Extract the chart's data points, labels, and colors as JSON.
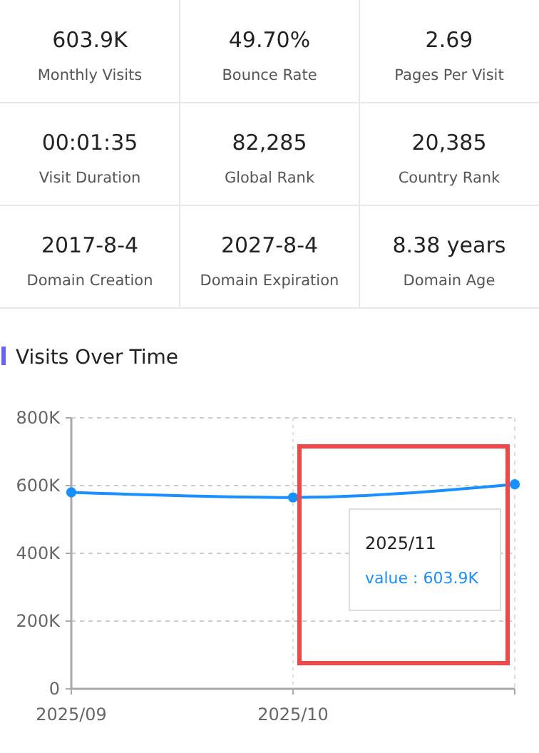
{
  "chart_data": [
    {
      "type": "other",
      "annotations": [
        "603.9K",
        "Monthly Visits",
        "49.70%",
        "Bounce Rate",
        "2.69",
        "Pages Per Visit",
        "00:01:35",
        "Visit Duration",
        "82,285",
        "Global Rank",
        "20,385",
        "Country Rank",
        "2017-8-4",
        "Domain Creation",
        "2027-8-4",
        "Domain Expiration",
        "8.38 years",
        "Domain Age"
      ]
    },
    {
      "type": "line",
      "title": "Visits Over Time",
      "categories": [
        "2025/09",
        "2025/10",
        null
      ],
      "series": [
        {
          "color": "#1890ff",
          "values": [
            580000,
            565000,
            603900
          ]
        }
      ],
      "ylim": [
        0,
        800000
      ],
      "yticks": [
        0,
        {
          "value": 200000,
          "label": "200K"
        },
        {
          "value": 400000,
          "label": "400K"
        },
        {
          "value": 600000,
          "label": "600K"
        },
        {
          "value": 800000,
          "label": "800K"
        }
      ],
      "grid": "y",
      "ref_lines": [
        {
          "axis": "x",
          "value": "2025/10",
          "color": "#dddddd",
          "line_style": "dotted"
        }
      ],
      "marker": "circle",
      "line_style": "solid",
      "annotations": [
        "2025/11",
        "value : 603.9K"
      ]
    }
  ]
}
